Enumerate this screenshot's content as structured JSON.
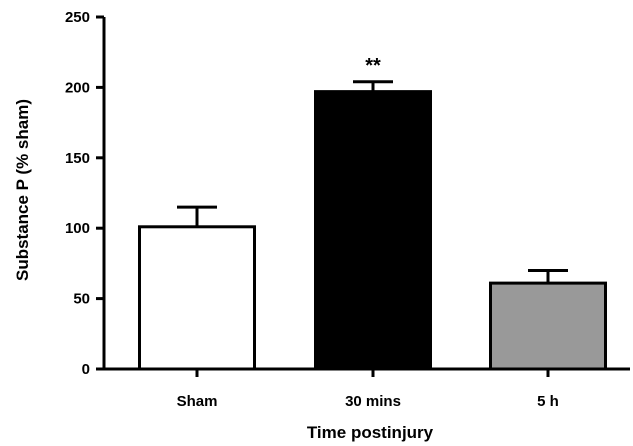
{
  "chart_data": {
    "type": "bar",
    "xlabel": "Time postinjury",
    "ylabel": "Substance P (% sham)",
    "ylim": [
      0,
      250
    ],
    "yticks": [
      0,
      50,
      100,
      150,
      200,
      250
    ],
    "categories": [
      "Sham",
      "30 mins",
      "5 h"
    ],
    "values": [
      101,
      197,
      61
    ],
    "errors": [
      14,
      7,
      9
    ],
    "bar_colors": [
      "#ffffff",
      "#000000",
      "#999999"
    ],
    "annotations": [
      "",
      "**",
      ""
    ],
    "grid": false,
    "legend": "none"
  }
}
